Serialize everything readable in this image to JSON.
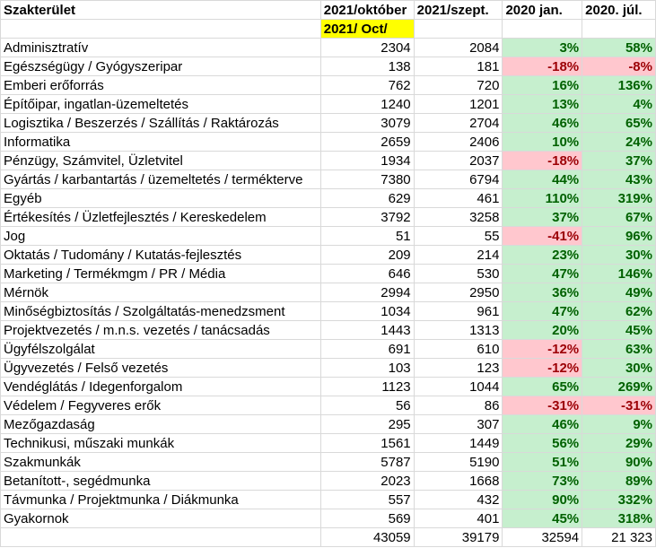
{
  "headers": [
    "Szakterület",
    "2021/október",
    "2021/szept.",
    "2020 jan.",
    "2020. júl."
  ],
  "sub_header": "2021/ Oct/",
  "rows": [
    {
      "name": "Adminisztratív",
      "oct": "2304",
      "sep": "2084",
      "jan": "3%",
      "jul": "58%",
      "jan_sign": "pos",
      "jul_sign": "pos"
    },
    {
      "name": "Egészségügy / Gyógyszeripar",
      "oct": "138",
      "sep": "181",
      "jan": "-18%",
      "jul": "-8%",
      "jan_sign": "neg",
      "jul_sign": "neg"
    },
    {
      "name": "Emberi erőforrás",
      "oct": "762",
      "sep": "720",
      "jan": "16%",
      "jul": "136%",
      "jan_sign": "pos",
      "jul_sign": "pos"
    },
    {
      "name": "Építőipar, ingatlan-üzemeltetés",
      "oct": "1240",
      "sep": "1201",
      "jan": "13%",
      "jul": "4%",
      "jan_sign": "pos",
      "jul_sign": "pos"
    },
    {
      "name": "Logisztika / Beszerzés / Szállítás / Raktározás",
      "oct": "3079",
      "sep": "2704",
      "jan": "46%",
      "jul": "65%",
      "jan_sign": "pos",
      "jul_sign": "pos"
    },
    {
      "name": "Informatika",
      "oct": "2659",
      "sep": "2406",
      "jan": "10%",
      "jul": "24%",
      "jan_sign": "pos",
      "jul_sign": "pos"
    },
    {
      "name": "Pénzügy, Számvitel, Üzletvitel",
      "oct": "1934",
      "sep": "2037",
      "jan": "-18%",
      "jul": "37%",
      "jan_sign": "neg",
      "jul_sign": "pos"
    },
    {
      "name": "Gyártás / karbantartás / üzemeltetés / termékterve",
      "oct": "7380",
      "sep": "6794",
      "jan": "44%",
      "jul": "43%",
      "jan_sign": "pos",
      "jul_sign": "pos"
    },
    {
      "name": "Egyéb",
      "oct": "629",
      "sep": "461",
      "jan": "110%",
      "jul": "319%",
      "jan_sign": "pos",
      "jul_sign": "pos"
    },
    {
      "name": "Értékesítés / Üzletfejlesztés / Kereskedelem",
      "oct": "3792",
      "sep": "3258",
      "jan": "37%",
      "jul": "67%",
      "jan_sign": "pos",
      "jul_sign": "pos"
    },
    {
      "name": "Jog",
      "oct": "51",
      "sep": "55",
      "jan": "-41%",
      "jul": "96%",
      "jan_sign": "neg",
      "jul_sign": "pos"
    },
    {
      "name": "Oktatás / Tudomány / Kutatás-fejlesztés",
      "oct": "209",
      "sep": "214",
      "jan": "23%",
      "jul": "30%",
      "jan_sign": "pos",
      "jul_sign": "pos"
    },
    {
      "name": "Marketing / Termékmgm / PR / Média",
      "oct": "646",
      "sep": "530",
      "jan": "47%",
      "jul": "146%",
      "jan_sign": "pos",
      "jul_sign": "pos"
    },
    {
      "name": "Mérnök",
      "oct": "2994",
      "sep": "2950",
      "jan": "36%",
      "jul": "49%",
      "jan_sign": "pos",
      "jul_sign": "pos"
    },
    {
      "name": "Minőségbiztosítás / Szolgáltatás-menedzsment",
      "oct": "1034",
      "sep": "961",
      "jan": "47%",
      "jul": "62%",
      "jan_sign": "pos",
      "jul_sign": "pos"
    },
    {
      "name": "Projektvezetés / m.n.s. vezetés / tanácsadás",
      "oct": "1443",
      "sep": "1313",
      "jan": "20%",
      "jul": "45%",
      "jan_sign": "pos",
      "jul_sign": "pos"
    },
    {
      "name": "Ügyfélszolgálat",
      "oct": "691",
      "sep": "610",
      "jan": "-12%",
      "jul": "63%",
      "jan_sign": "neg",
      "jul_sign": "pos"
    },
    {
      "name": "Ügyvezetés / Felső vezetés",
      "oct": "103",
      "sep": "123",
      "jan": "-12%",
      "jul": "30%",
      "jan_sign": "neg",
      "jul_sign": "pos"
    },
    {
      "name": "Vendéglátás / Idegenforgalom",
      "oct": "1123",
      "sep": "1044",
      "jan": "65%",
      "jul": "269%",
      "jan_sign": "pos",
      "jul_sign": "pos"
    },
    {
      "name": "Védelem / Fegyveres erők",
      "oct": "56",
      "sep": "86",
      "jan": "-31%",
      "jul": "-31%",
      "jan_sign": "neg",
      "jul_sign": "neg"
    },
    {
      "name": "Mezőgazdaság",
      "oct": "295",
      "sep": "307",
      "jan": "46%",
      "jul": "9%",
      "jan_sign": "pos",
      "jul_sign": "pos"
    },
    {
      "name": "Technikusi, műszaki munkák",
      "oct": "1561",
      "sep": "1449",
      "jan": "56%",
      "jul": "29%",
      "jan_sign": "pos",
      "jul_sign": "pos"
    },
    {
      "name": "Szakmunkák",
      "oct": "5787",
      "sep": "5190",
      "jan": "51%",
      "jul": "90%",
      "jan_sign": "pos",
      "jul_sign": "pos"
    },
    {
      "name": "Betanított-, segédmunka",
      "oct": "2023",
      "sep": "1668",
      "jan": "73%",
      "jul": "89%",
      "jan_sign": "pos",
      "jul_sign": "pos"
    },
    {
      "name": "Távmunka / Projektmunka / Diákmunka",
      "oct": "557",
      "sep": "432",
      "jan": "90%",
      "jul": "332%",
      "jan_sign": "pos",
      "jul_sign": "pos"
    },
    {
      "name": "Gyakornok",
      "oct": "569",
      "sep": "401",
      "jan": "45%",
      "jul": "318%",
      "jan_sign": "pos",
      "jul_sign": "pos"
    }
  ],
  "totals": {
    "oct": "43059",
    "sep": "39179",
    "jan": "32594",
    "jul": "21 323"
  },
  "colors": {
    "sub_header_fill": "#ffff00",
    "positive_fill": "#c6efce",
    "positive_text": "#006100",
    "negative_fill": "#ffc7ce",
    "negative_text": "#9c0006"
  }
}
